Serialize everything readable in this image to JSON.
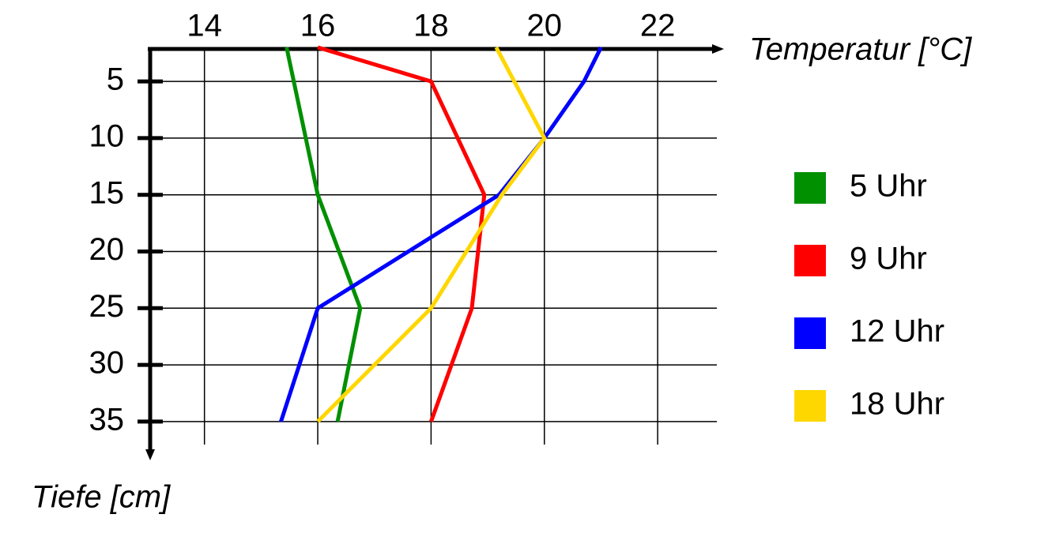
{
  "chart_data": {
    "type": "line",
    "x_label": "Temperatur [°C]",
    "y_label": "Tiefe [cm]",
    "xlim": [
      13,
      23.1
    ],
    "xticks": [
      14,
      16,
      18,
      20,
      22
    ],
    "ylim": [
      2,
      38
    ],
    "yticks": [
      5,
      10,
      15,
      20,
      25,
      30,
      35
    ],
    "y_inverted": true,
    "grid": true,
    "legend": "right",
    "series": [
      {
        "name": "5 Uhr",
        "color": "#009000",
        "x": [
          15.45,
          16,
          16.75,
          16.35
        ],
        "y": [
          2,
          15,
          25,
          35
        ]
      },
      {
        "name": "9 Uhr",
        "color": "#ff0000",
        "x": [
          16,
          18,
          18.94,
          18.72,
          18
        ],
        "y": [
          2,
          5,
          15,
          25,
          35
        ]
      },
      {
        "name": "12 Uhr",
        "color": "#0000ff",
        "x": [
          21,
          20.7,
          20,
          19.2,
          16,
          15.35
        ],
        "y": [
          2,
          5,
          10,
          15,
          25,
          35
        ]
      },
      {
        "name": "18 Uhr",
        "color": "#ffd700",
        "x": [
          19.15,
          20,
          19.25,
          18,
          16
        ],
        "y": [
          2,
          10,
          15,
          25,
          35
        ]
      }
    ]
  }
}
